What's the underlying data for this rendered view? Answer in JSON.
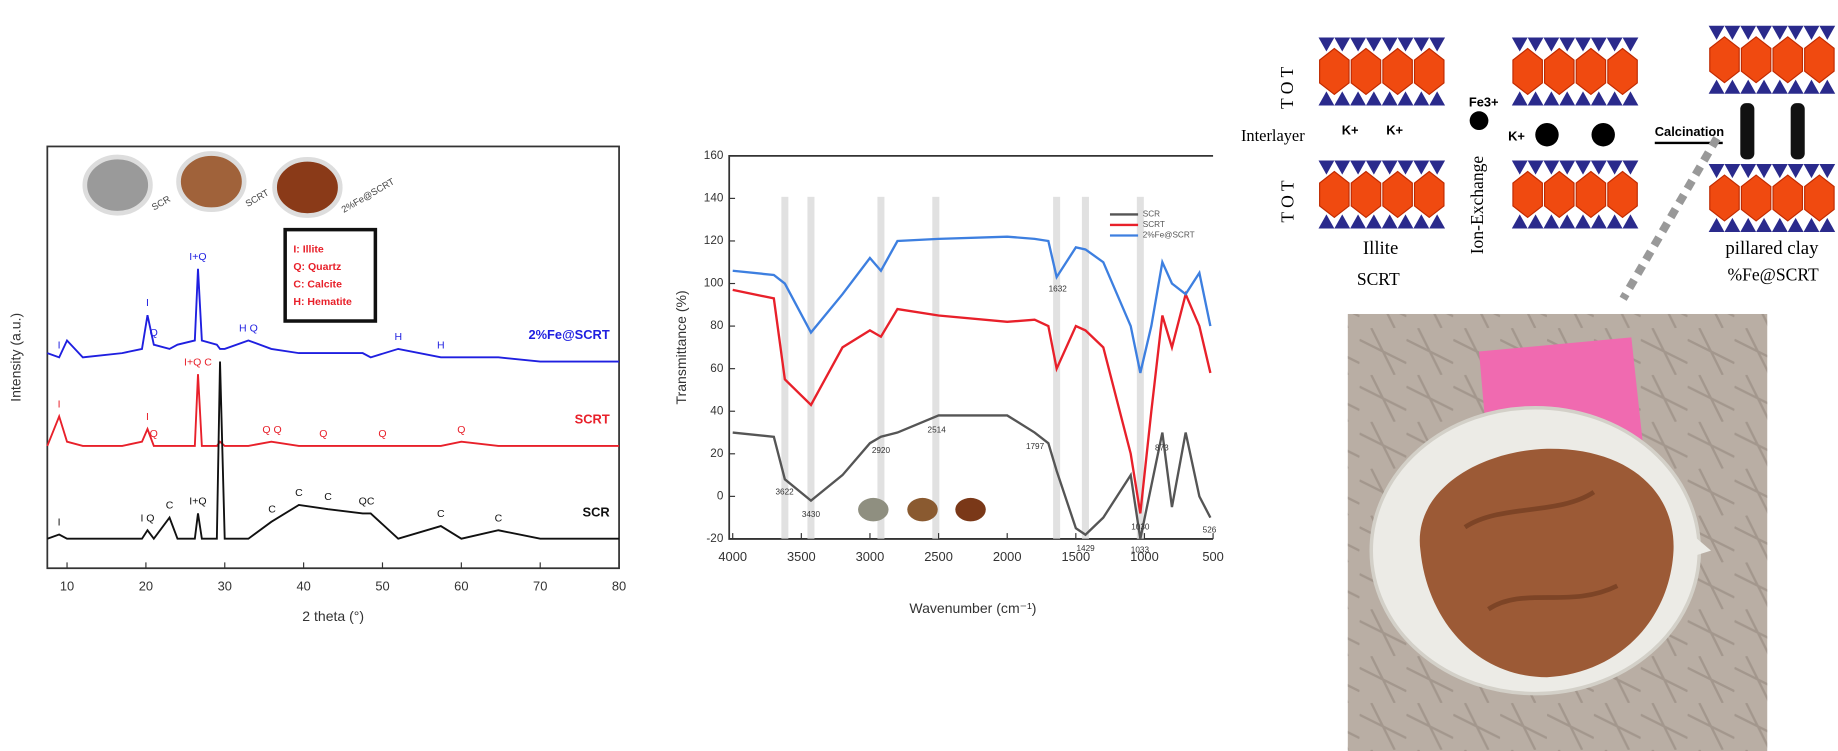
{
  "chart_data": [
    {
      "type": "line",
      "x_label": "2 theta (°)",
      "y_label": "Intensity (a.u.)",
      "x": [
        7.5,
        9,
        10,
        12,
        17,
        19.5,
        20.2,
        21,
        23,
        24,
        26.2,
        26.6,
        27.1,
        29,
        29.4,
        30,
        33,
        35.9,
        39.4,
        43.1,
        47.5,
        48.5,
        52,
        57.4,
        60,
        64.7,
        70,
        80
      ],
      "xlim": [
        7.5,
        80
      ],
      "xticks": [
        10,
        20,
        30,
        40,
        50,
        60,
        70,
        80
      ],
      "ylim": [
        0,
        100
      ],
      "series": [
        {
          "name": "2%Fe@SCRT",
          "color": "#1f1fe0",
          "values": [
            51,
            50,
            54,
            50,
            51,
            52,
            60,
            53,
            52,
            53,
            54,
            71,
            54,
            53,
            52,
            52,
            54,
            52,
            51,
            51,
            51,
            50,
            52,
            50,
            50,
            50,
            49,
            49
          ],
          "peaks": [
            {
              "x": 9,
              "label": "I"
            },
            {
              "x": 20.2,
              "label": "I"
            },
            {
              "x": 21,
              "label": "Q"
            },
            {
              "x": 26.6,
              "label": "I+Q"
            },
            {
              "x": 33,
              "label": "H Q"
            },
            {
              "x": 52,
              "label": "H"
            },
            {
              "x": 57.4,
              "label": "H"
            }
          ]
        },
        {
          "name": "SCRT",
          "color": "#e8202a",
          "values": [
            29,
            36,
            30,
            29,
            29,
            30,
            33,
            29,
            29,
            29,
            29,
            46,
            29,
            29,
            30,
            29,
            29,
            30,
            29,
            29,
            29,
            29,
            29,
            29,
            30,
            29,
            29,
            29
          ],
          "peaks": [
            {
              "x": 9,
              "label": "I"
            },
            {
              "x": 20.2,
              "label": "I"
            },
            {
              "x": 21,
              "label": "Q"
            },
            {
              "x": 26.6,
              "label": "I+Q C"
            },
            {
              "x": 36,
              "label": "Q Q"
            },
            {
              "x": 42.5,
              "label": "Q"
            },
            {
              "x": 50,
              "label": "Q"
            },
            {
              "x": 60,
              "label": "Q"
            }
          ]
        },
        {
          "name": "SCR",
          "color": "#111111",
          "values": [
            7,
            8,
            7,
            7,
            7,
            7,
            9,
            7,
            12,
            7,
            7,
            13,
            7,
            7,
            49,
            7,
            7,
            11,
            15,
            14,
            13,
            13,
            7,
            10,
            7,
            9,
            7,
            7
          ],
          "peaks": [
            {
              "x": 9,
              "label": "I"
            },
            {
              "x": 20.2,
              "label": "I Q"
            },
            {
              "x": 23,
              "label": "C"
            },
            {
              "x": 26.6,
              "label": "I+Q"
            },
            {
              "x": 36,
              "label": "C"
            },
            {
              "x": 39.4,
              "label": "C"
            },
            {
              "x": 43.1,
              "label": "C"
            },
            {
              "x": 47.5,
              "label": "Q"
            },
            {
              "x": 48.5,
              "label": "C"
            },
            {
              "x": 57.4,
              "label": "C"
            },
            {
              "x": 64.7,
              "label": "C"
            }
          ]
        }
      ],
      "legend_box": [
        "I: Illite",
        "Q: Quartz",
        "C: Calcite",
        "H: Hematite"
      ],
      "inset_labels": [
        "SCR",
        "SCRT",
        "2%Fe@SCRT"
      ]
    },
    {
      "type": "line",
      "x_label": "Wavenumber (cm⁻¹)",
      "y_label": "Transmittance (%)",
      "x": [
        4000,
        3700,
        3620,
        3430,
        3200,
        3000,
        2920,
        2800,
        2500,
        2000,
        1800,
        1700,
        1640,
        1500,
        1430,
        1300,
        1100,
        1030,
        950,
        870,
        800,
        700,
        600,
        520
      ],
      "xlim": [
        4000,
        500
      ],
      "xticks": [
        4000,
        3500,
        3000,
        2500,
        2000,
        1500,
        1000,
        500
      ],
      "ylim": [
        -20,
        160
      ],
      "yticks": [
        -20,
        0,
        20,
        40,
        60,
        80,
        100,
        120,
        140,
        160
      ],
      "bands": [
        3620,
        3430,
        2920,
        2520,
        1640,
        1430,
        1030
      ],
      "legend": "upper right",
      "series": [
        {
          "name": "SCR",
          "color": "#555555",
          "values": [
            30,
            28,
            8,
            -2,
            10,
            25,
            28,
            30,
            38,
            38,
            30,
            25,
            12,
            -15,
            -18,
            -10,
            10,
            -20,
            5,
            30,
            -5,
            30,
            0,
            -10
          ],
          "peak_labels": [
            3622,
            3430,
            2920,
            2514,
            1797,
            1429,
            1033,
            873,
            526
          ]
        },
        {
          "name": "SCRT",
          "color": "#e8202a",
          "values": [
            97,
            93,
            55,
            43,
            70,
            78,
            75,
            88,
            85,
            82,
            83,
            80,
            60,
            80,
            78,
            70,
            20,
            -8,
            40,
            85,
            70,
            95,
            80,
            58
          ],
          "peak_labels": [
            1030
          ]
        },
        {
          "name": "2%Fe@SCRT",
          "color": "#3d7fe0",
          "values": [
            106,
            104,
            100,
            77,
            95,
            112,
            106,
            120,
            121,
            122,
            121,
            120,
            103,
            117,
            116,
            110,
            80,
            58,
            80,
            110,
            100,
            95,
            105,
            80
          ],
          "peak_labels": [
            1632
          ]
        }
      ]
    }
  ],
  "diagram": {
    "tot_labels": [
      "T O T",
      "T O T"
    ],
    "interlayer": "Interlayer",
    "k_ions": [
      "K+",
      "K+",
      "K+"
    ],
    "illite": "Illite",
    "scrt": "SCRT",
    "fe": "Fe3+",
    "ion_exchange": "Ion-Exchange",
    "calcination": "Calcination",
    "pillared": "pillared clay",
    "product": "%Fe@SCRT"
  }
}
